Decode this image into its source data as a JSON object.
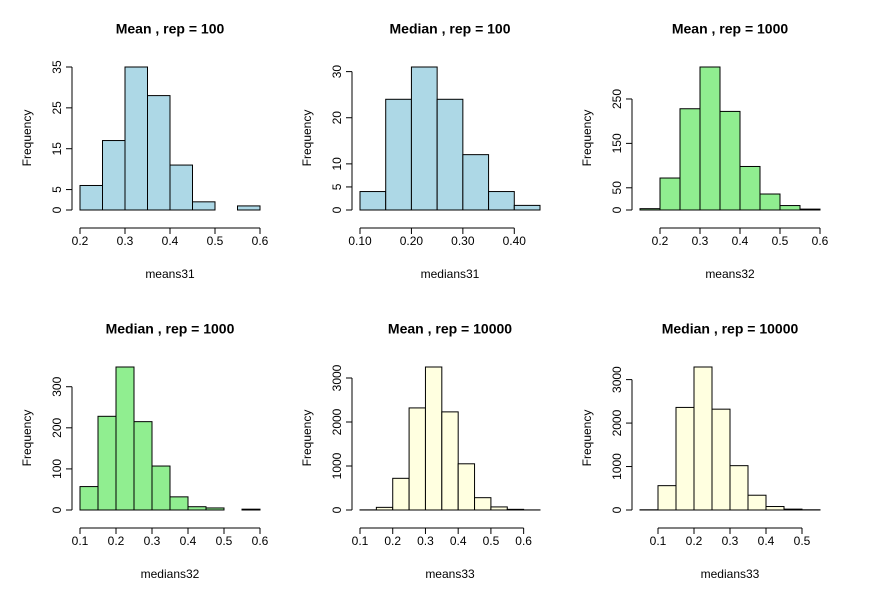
{
  "chart_data": [
    {
      "type": "histogram",
      "title": "Mean , rep = 100",
      "xlabel": "means31",
      "ylabel": "Frequency",
      "color": "#add8e6",
      "bins": [
        0.2,
        0.25,
        0.3,
        0.35,
        0.4,
        0.45,
        0.5,
        0.55,
        0.6
      ],
      "counts": [
        6,
        17,
        35,
        28,
        11,
        2,
        0,
        1
      ],
      "xlim": [
        0.2,
        0.6
      ],
      "ylim": [
        0,
        35
      ],
      "xticks": [
        0.2,
        0.3,
        0.4,
        0.5,
        0.6
      ],
      "yticks": [
        0,
        5,
        15,
        25,
        35
      ]
    },
    {
      "type": "histogram",
      "title": "Median , rep = 100",
      "xlabel": "medians31",
      "ylabel": "Frequency",
      "color": "#add8e6",
      "bins": [
        0.1,
        0.15,
        0.2,
        0.25,
        0.3,
        0.35,
        0.4,
        0.45
      ],
      "counts": [
        4,
        24,
        31,
        24,
        12,
        4,
        1
      ],
      "xlim": [
        0.1,
        0.45
      ],
      "ylim": [
        0,
        31
      ],
      "xticks": [
        {
          "value": 0.1,
          "label": "0.10"
        },
        {
          "value": 0.2,
          "label": "0.20"
        },
        {
          "value": 0.3,
          "label": "0.30"
        },
        {
          "value": 0.4,
          "label": "0.40"
        }
      ],
      "yticks": [
        0,
        5,
        10,
        20,
        30
      ]
    },
    {
      "type": "histogram",
      "title": "Mean , rep = 1000",
      "xlabel": "means32",
      "ylabel": "Frequency",
      "color": "#90ee90",
      "bins": [
        0.15,
        0.2,
        0.25,
        0.3,
        0.35,
        0.4,
        0.45,
        0.5,
        0.55,
        0.6
      ],
      "counts": [
        3,
        72,
        228,
        322,
        222,
        98,
        36,
        10,
        2
      ],
      "xlim": [
        0.15,
        0.6
      ],
      "ylim": [
        0,
        322
      ],
      "xticks": [
        0.2,
        0.3,
        0.4,
        0.5,
        0.6
      ],
      "yticks": [
        0,
        50,
        150,
        250
      ]
    },
    {
      "type": "histogram",
      "title": "Median , rep = 1000",
      "xlabel": "medians32",
      "ylabel": "Frequency",
      "color": "#90ee90",
      "bins": [
        0.1,
        0.15,
        0.2,
        0.25,
        0.3,
        0.35,
        0.4,
        0.45,
        0.5,
        0.55,
        0.6
      ],
      "counts": [
        57,
        228,
        348,
        215,
        107,
        32,
        8,
        5,
        0,
        2
      ],
      "xlim": [
        0.1,
        0.6
      ],
      "ylim": [
        0,
        348
      ],
      "xticks": [
        0.1,
        0.2,
        0.3,
        0.4,
        0.5,
        0.6
      ],
      "yticks": [
        0,
        100,
        200,
        300
      ]
    },
    {
      "type": "histogram",
      "title": "Mean , rep = 10000",
      "xlabel": "means33",
      "ylabel": "Frequency",
      "color": "#ffffe0",
      "bins": [
        0.1,
        0.15,
        0.2,
        0.25,
        0.3,
        0.35,
        0.4,
        0.45,
        0.5,
        0.55,
        0.6,
        0.65
      ],
      "counts": [
        3,
        60,
        720,
        2320,
        3250,
        2230,
        1050,
        280,
        70,
        15,
        2
      ],
      "xlim": [
        0.1,
        0.65
      ],
      "ylim": [
        0,
        3250
      ],
      "xticks": [
        0.1,
        0.2,
        0.3,
        0.4,
        0.5,
        0.6
      ],
      "yticks": [
        0,
        1000,
        2000,
        3000
      ]
    },
    {
      "type": "histogram",
      "title": "Median , rep = 10000",
      "xlabel": "medians33",
      "ylabel": "Frequency",
      "color": "#ffffe0",
      "bins": [
        0.05,
        0.1,
        0.15,
        0.2,
        0.25,
        0.3,
        0.35,
        0.4,
        0.45,
        0.5,
        0.55
      ],
      "counts": [
        5,
        560,
        2360,
        3290,
        2320,
        1020,
        340,
        80,
        20,
        5
      ],
      "xlim": [
        0.05,
        0.55
      ],
      "ylim": [
        0,
        3290
      ],
      "xticks": [
        0.1,
        0.2,
        0.3,
        0.4,
        0.5
      ],
      "yticks": [
        0,
        1000,
        2000,
        3000
      ]
    }
  ]
}
